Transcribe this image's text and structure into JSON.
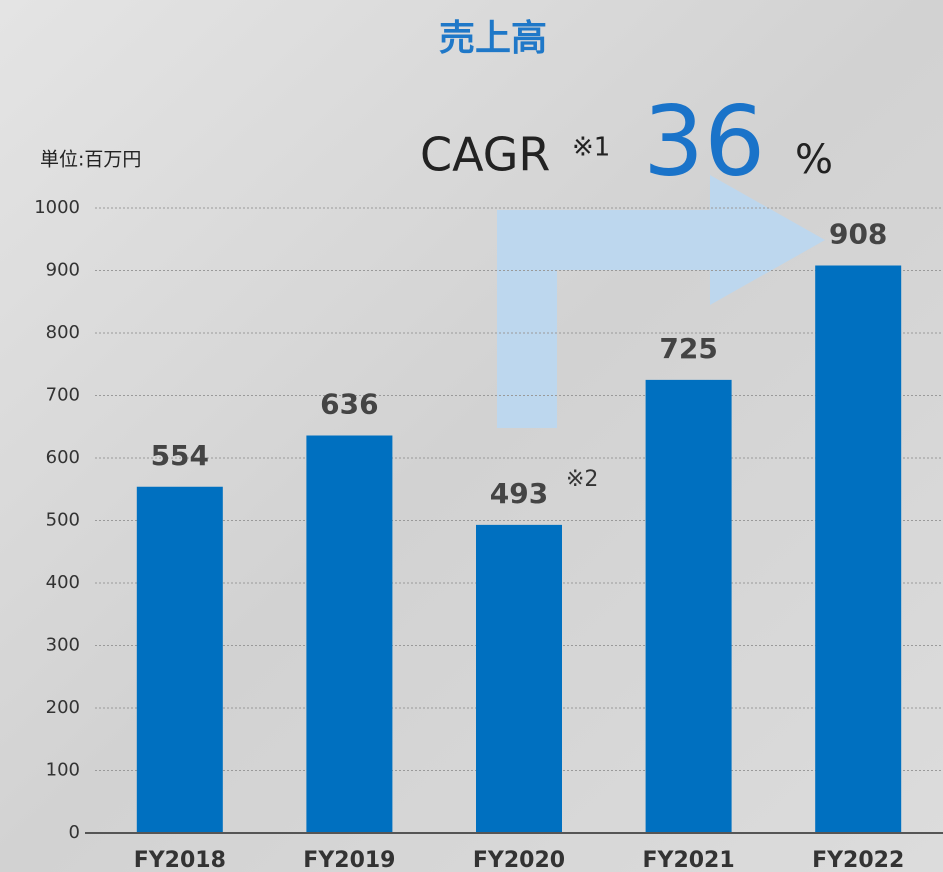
{
  "chart_data": {
    "type": "bar",
    "title": "売上高",
    "unit_label": "単位:百万円",
    "annotations": {
      "cagr": "CAGR",
      "cagr_note": "※1",
      "cagr_value": 36,
      "cagr_unit": "%",
      "fy2020_note": "※2"
    },
    "categories": [
      "FY2018",
      "FY2019",
      "FY2020",
      "FY2021",
      "FY2022"
    ],
    "values": [
      554,
      636,
      493,
      725,
      908
    ],
    "color": "#0070c0",
    "ylim": [
      0,
      1000
    ],
    "yticks": [
      0,
      100,
      200,
      300,
      400,
      500,
      600,
      700,
      800,
      900,
      1000
    ],
    "grid": true
  }
}
